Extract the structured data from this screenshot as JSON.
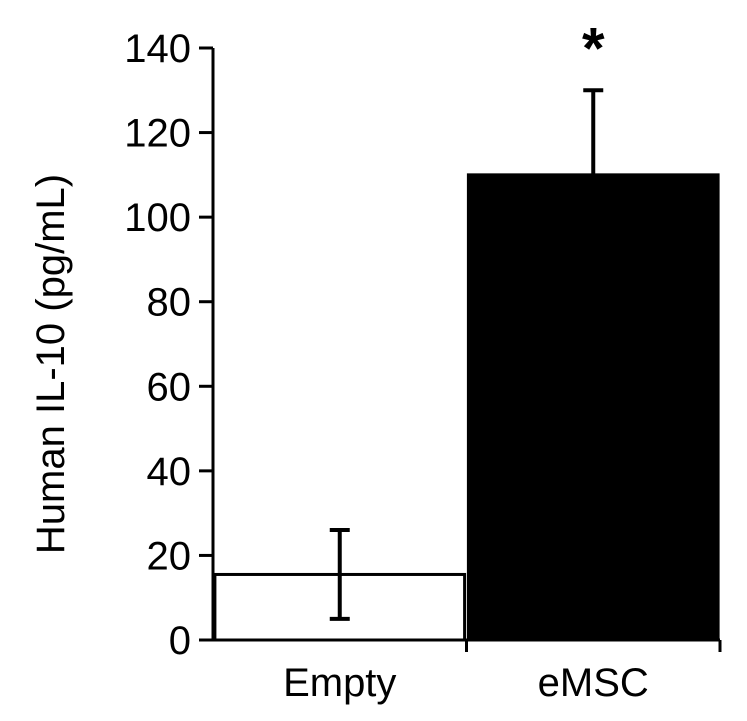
{
  "chart_data": {
    "type": "bar",
    "title": "",
    "xlabel": "",
    "ylabel": "Human IL-10 (pg/mL)",
    "ylim": [
      0,
      140
    ],
    "yticks": [
      0,
      20,
      40,
      60,
      80,
      100,
      120,
      140
    ],
    "ytick_labels": [
      "0",
      "20",
      "40",
      "60",
      "80",
      "100",
      "120",
      "140"
    ],
    "categories": [
      "Empty",
      "eMSC"
    ],
    "values": [
      15.5,
      110
    ],
    "error_upper": [
      26,
      130
    ],
    "error_lower": [
      5,
      110
    ],
    "bar_colors": [
      "#ffffff",
      "#000000"
    ],
    "bar_edge_color": "#000000",
    "annotations": [
      {
        "category": "eMSC",
        "text": "*"
      }
    ],
    "grid": false,
    "legend": "none"
  }
}
